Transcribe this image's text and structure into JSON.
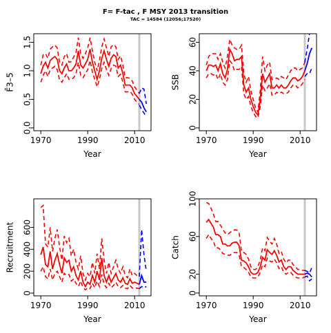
{
  "figure": {
    "title": "F= F-tac , F MSY 2013 transition",
    "subtitle": "TAC = 14584 (12056;17520)"
  },
  "colors": {
    "historic": "#ff0000",
    "projection": "#0000ff",
    "marker_line": "#c8c8c8",
    "frame": "#000000"
  },
  "chart_data": [
    {
      "type": "line",
      "id": "fbar",
      "xlabel": "Year",
      "ylabel": "F̄3–5",
      "xlim": [
        1967,
        2017
      ],
      "ylim": [
        -0.05,
        1.65
      ],
      "xticks": [
        1970,
        1990,
        2010
      ],
      "yticks": [
        0.0,
        0.5,
        1.0,
        1.5
      ],
      "vline_year": 2012,
      "historic": {
        "x": [
          1970,
          1971,
          1972,
          1973,
          1974,
          1975,
          1976,
          1977,
          1978,
          1979,
          1980,
          1981,
          1982,
          1983,
          1984,
          1985,
          1986,
          1987,
          1988,
          1989,
          1990,
          1991,
          1992,
          1993,
          1994,
          1995,
          1996,
          1997,
          1998,
          1999,
          2000,
          2001,
          2002,
          2003,
          2004,
          2005,
          2006,
          2007,
          2008,
          2009,
          2010,
          2011,
          2012
        ],
        "mid": [
          0.95,
          1.08,
          1.15,
          1.05,
          1.18,
          1.22,
          1.25,
          1.2,
          1.0,
          0.95,
          1.05,
          1.12,
          1.0,
          1.0,
          1.05,
          1.12,
          1.35,
          1.1,
          1.05,
          1.12,
          1.2,
          1.38,
          1.15,
          1.0,
          0.85,
          1.0,
          1.22,
          1.35,
          1.2,
          1.08,
          1.22,
          1.28,
          1.25,
          1.05,
          1.1,
          0.95,
          0.75,
          0.75,
          0.75,
          0.7,
          0.6,
          0.55,
          0.5
        ],
        "upper": [
          1.1,
          1.28,
          1.3,
          1.22,
          1.38,
          1.42,
          1.45,
          1.4,
          1.15,
          1.1,
          1.25,
          1.3,
          1.15,
          1.16,
          1.24,
          1.32,
          1.58,
          1.3,
          1.22,
          1.3,
          1.4,
          1.58,
          1.35,
          1.15,
          1.0,
          1.18,
          1.42,
          1.56,
          1.4,
          1.25,
          1.42,
          1.46,
          1.42,
          1.2,
          1.26,
          1.1,
          0.88,
          0.88,
          0.87,
          0.82,
          0.72,
          0.66,
          0.6
        ],
        "lower": [
          0.8,
          0.92,
          1.0,
          0.9,
          1.02,
          1.05,
          1.08,
          1.02,
          0.84,
          0.8,
          0.88,
          0.95,
          0.85,
          0.85,
          0.88,
          0.95,
          1.15,
          0.92,
          0.88,
          0.95,
          1.02,
          1.18,
          0.98,
          0.85,
          0.72,
          0.85,
          1.04,
          1.15,
          1.02,
          0.92,
          1.04,
          1.1,
          1.08,
          0.9,
          0.94,
          0.8,
          0.63,
          0.63,
          0.64,
          0.59,
          0.5,
          0.45,
          0.41
        ]
      },
      "projection": {
        "x": [
          2012,
          2013,
          2014,
          2015
        ],
        "mid": [
          0.5,
          0.45,
          0.35,
          0.28
        ],
        "upper": [
          0.6,
          0.7,
          0.68,
          0.42
        ],
        "lower": [
          0.4,
          0.32,
          0.26,
          0.2
        ]
      }
    },
    {
      "type": "line",
      "id": "ssb",
      "xlabel": "Year",
      "ylabel": "SSB",
      "xlim": [
        1967,
        2017
      ],
      "ylim": [
        -2,
        66
      ],
      "xticks": [
        1970,
        1990,
        2010
      ],
      "yticks": [
        0,
        20,
        40,
        60
      ],
      "vline_year": 2012,
      "historic": {
        "x": [
          1970,
          1971,
          1972,
          1973,
          1974,
          1975,
          1976,
          1977,
          1978,
          1979,
          1980,
          1981,
          1982,
          1983,
          1984,
          1985,
          1986,
          1987,
          1988,
          1989,
          1990,
          1991,
          1992,
          1993,
          1994,
          1995,
          1996,
          1997,
          1998,
          1999,
          2000,
          2001,
          2002,
          2003,
          2004,
          2005,
          2006,
          2007,
          2008,
          2009,
          2010,
          2011,
          2012
        ],
        "mid": [
          40,
          44,
          44,
          43,
          44,
          40,
          45,
          38,
          35,
          41,
          55,
          52,
          47,
          48,
          48,
          50,
          30,
          25,
          28,
          20,
          15,
          11,
          9,
          20,
          38,
          32,
          35,
          38,
          28,
          28,
          30,
          28,
          30,
          28,
          28,
          30,
          33,
          35,
          35,
          33,
          34,
          36,
          40
        ],
        "upper": [
          44,
          50,
          52,
          52,
          52,
          48,
          52,
          46,
          42,
          50,
          62,
          58,
          56,
          55,
          55,
          58,
          38,
          32,
          36,
          26,
          20,
          14,
          11,
          26,
          50,
          40,
          44,
          46,
          34,
          34,
          35,
          34,
          36,
          35,
          34,
          37,
          40,
          42,
          42,
          40,
          41,
          42,
          46
        ],
        "lower": [
          35,
          38,
          38,
          37,
          38,
          34,
          38,
          32,
          30,
          34,
          47,
          45,
          40,
          41,
          41,
          43,
          24,
          20,
          22,
          15,
          11,
          8,
          7,
          15,
          30,
          26,
          28,
          31,
          23,
          23,
          25,
          24,
          25,
          24,
          24,
          25,
          28,
          30,
          30,
          28,
          29,
          31,
          34
        ]
      },
      "projection": {
        "x": [
          2012,
          2013,
          2014,
          2015
        ],
        "mid": [
          40,
          45,
          52,
          56
        ],
        "upper": [
          46,
          55,
          66,
          70
        ],
        "lower": [
          36,
          38,
          38,
          42
        ]
      }
    },
    {
      "type": "line",
      "id": "recruitment",
      "xlabel": "Year",
      "ylabel": "Recruitment",
      "xlim": [
        1967,
        2017
      ],
      "ylim": [
        -25,
        860
      ],
      "xticks": [
        1970,
        1990,
        2010
      ],
      "yticks": [
        0,
        200,
        400,
        600
      ],
      "vline_year": 2012,
      "historic": {
        "x": [
          1970,
          1971,
          1972,
          1973,
          1974,
          1975,
          1976,
          1977,
          1978,
          1979,
          1980,
          1981,
          1982,
          1983,
          1984,
          1985,
          1986,
          1987,
          1988,
          1989,
          1990,
          1991,
          1992,
          1993,
          1994,
          1995,
          1996,
          1997,
          1998,
          1999,
          2000,
          2001,
          2002,
          2003,
          2004,
          2005,
          2006,
          2007,
          2008,
          2009,
          2010,
          2011,
          2012
        ],
        "mid": [
          350,
          420,
          260,
          240,
          380,
          220,
          300,
          360,
          260,
          180,
          320,
          280,
          300,
          200,
          240,
          160,
          120,
          200,
          100,
          60,
          100,
          80,
          160,
          100,
          200,
          120,
          320,
          160,
          100,
          160,
          100,
          140,
          180,
          120,
          100,
          140,
          90,
          80,
          130,
          90,
          100,
          90,
          80
        ],
        "upper": [
          780,
          800,
          450,
          420,
          600,
          380,
          500,
          580,
          420,
          300,
          520,
          460,
          500,
          340,
          400,
          280,
          220,
          340,
          180,
          120,
          180,
          150,
          280,
          180,
          360,
          220,
          500,
          300,
          180,
          280,
          180,
          240,
          300,
          220,
          180,
          240,
          160,
          140,
          220,
          160,
          180,
          160,
          150
        ],
        "lower": [
          200,
          240,
          150,
          130,
          220,
          120,
          180,
          200,
          150,
          100,
          180,
          160,
          170,
          110,
          130,
          90,
          60,
          110,
          50,
          30,
          50,
          40,
          90,
          50,
          110,
          60,
          170,
          80,
          50,
          90,
          50,
          70,
          100,
          60,
          50,
          70,
          45,
          40,
          70,
          45,
          50,
          45,
          40
        ]
      },
      "projection": {
        "x": [
          2012,
          2013,
          2014,
          2015
        ],
        "mid": [
          80,
          160,
          100,
          100
        ],
        "upper": [
          150,
          580,
          350,
          200
        ],
        "lower": [
          40,
          60,
          50,
          60
        ]
      }
    },
    {
      "type": "line",
      "id": "catch",
      "xlabel": "Year",
      "ylabel": "Catch",
      "xlim": [
        1967,
        2017
      ],
      "ylim": [
        -3,
        100
      ],
      "xticks": [
        1970,
        1990,
        2010
      ],
      "yticks": [
        0,
        20,
        60,
        100
      ],
      "vline_year": 2012,
      "historic": {
        "x": [
          1970,
          1971,
          1972,
          1973,
          1974,
          1975,
          1976,
          1977,
          1978,
          1979,
          1980,
          1981,
          1982,
          1983,
          1984,
          1985,
          1986,
          1987,
          1988,
          1989,
          1990,
          1991,
          1992,
          1993,
          1994,
          1995,
          1996,
          1997,
          1998,
          1999,
          2000,
          2001,
          2002,
          2003,
          2004,
          2005,
          2006,
          2007,
          2008,
          2009,
          2010,
          2011,
          2012
        ],
        "mid": [
          75,
          78,
          74,
          70,
          62,
          62,
          60,
          52,
          52,
          50,
          50,
          53,
          54,
          54,
          50,
          35,
          34,
          32,
          28,
          22,
          20,
          20,
          22,
          28,
          38,
          35,
          46,
          43,
          41,
          45,
          40,
          33,
          35,
          28,
          25,
          28,
          28,
          24,
          22,
          20,
          20,
          20,
          20
        ],
        "upper": [
          96,
          95,
          90,
          84,
          76,
          76,
          72,
          68,
          64,
          62,
          64,
          66,
          67,
          67,
          64,
          44,
          43,
          41,
          36,
          28,
          25,
          25,
          28,
          35,
          48,
          45,
          59,
          55,
          52,
          58,
          52,
          42,
          44,
          36,
          32,
          35,
          35,
          30,
          28,
          25,
          25,
          24,
          24
        ],
        "lower": [
          58,
          62,
          58,
          55,
          48,
          48,
          46,
          42,
          41,
          40,
          40,
          42,
          43,
          43,
          40,
          28,
          27,
          25,
          22,
          17,
          16,
          16,
          17,
          22,
          30,
          28,
          37,
          34,
          33,
          36,
          32,
          26,
          28,
          22,
          20,
          22,
          22,
          19,
          17,
          16,
          16,
          16,
          17
        ]
      },
      "projection": {
        "x": [
          2012,
          2013,
          2014,
          2015
        ],
        "mid": [
          20,
          21,
          20,
          17
        ],
        "upper": [
          24,
          23,
          21,
          27
        ],
        "lower": [
          17,
          18,
          13,
          15
        ]
      }
    }
  ]
}
